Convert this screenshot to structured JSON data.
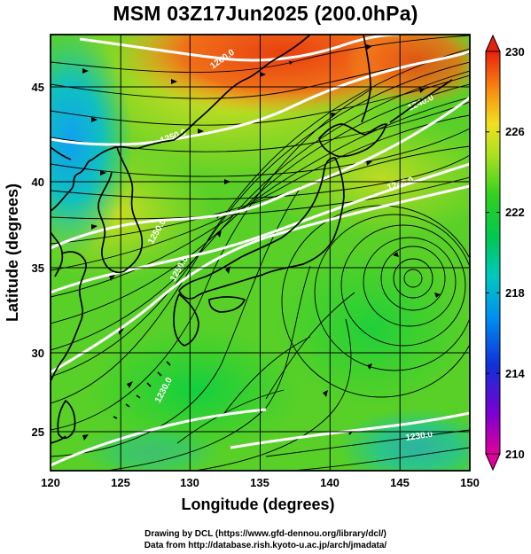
{
  "title": "MSM 03Z17Jun2025 (200.0hPa)",
  "xlabel": "Longitude (degrees)",
  "ylabel": "Latitude  (degrees)",
  "x_ticks": [
    "120",
    "125",
    "130",
    "135",
    "140",
    "145",
    "150"
  ],
  "y_ticks": [
    "25",
    "30",
    "35",
    "40",
    "45"
  ],
  "colorbar": {
    "ticks": [
      "210",
      "214",
      "218",
      "222",
      "226",
      "230"
    ],
    "min": 210,
    "max": 230
  },
  "contour_labels": [
    "1260.0",
    "1240.0",
    "1250.0",
    "1240.0",
    "1250.0",
    "1250.0",
    "1230.0",
    "1230.0"
  ],
  "footer": {
    "line1": "Drawing by DCL (https://www.gfd-dennou.org/library/dcl/)",
    "line2": "Data from http://database.rish.kyoto-u.ac.jp/arch/jmadata/"
  },
  "map": {
    "lon_range": [
      120,
      150
    ],
    "lat_range": [
      22.5,
      48
    ],
    "variable_range": [
      210,
      230
    ]
  }
}
